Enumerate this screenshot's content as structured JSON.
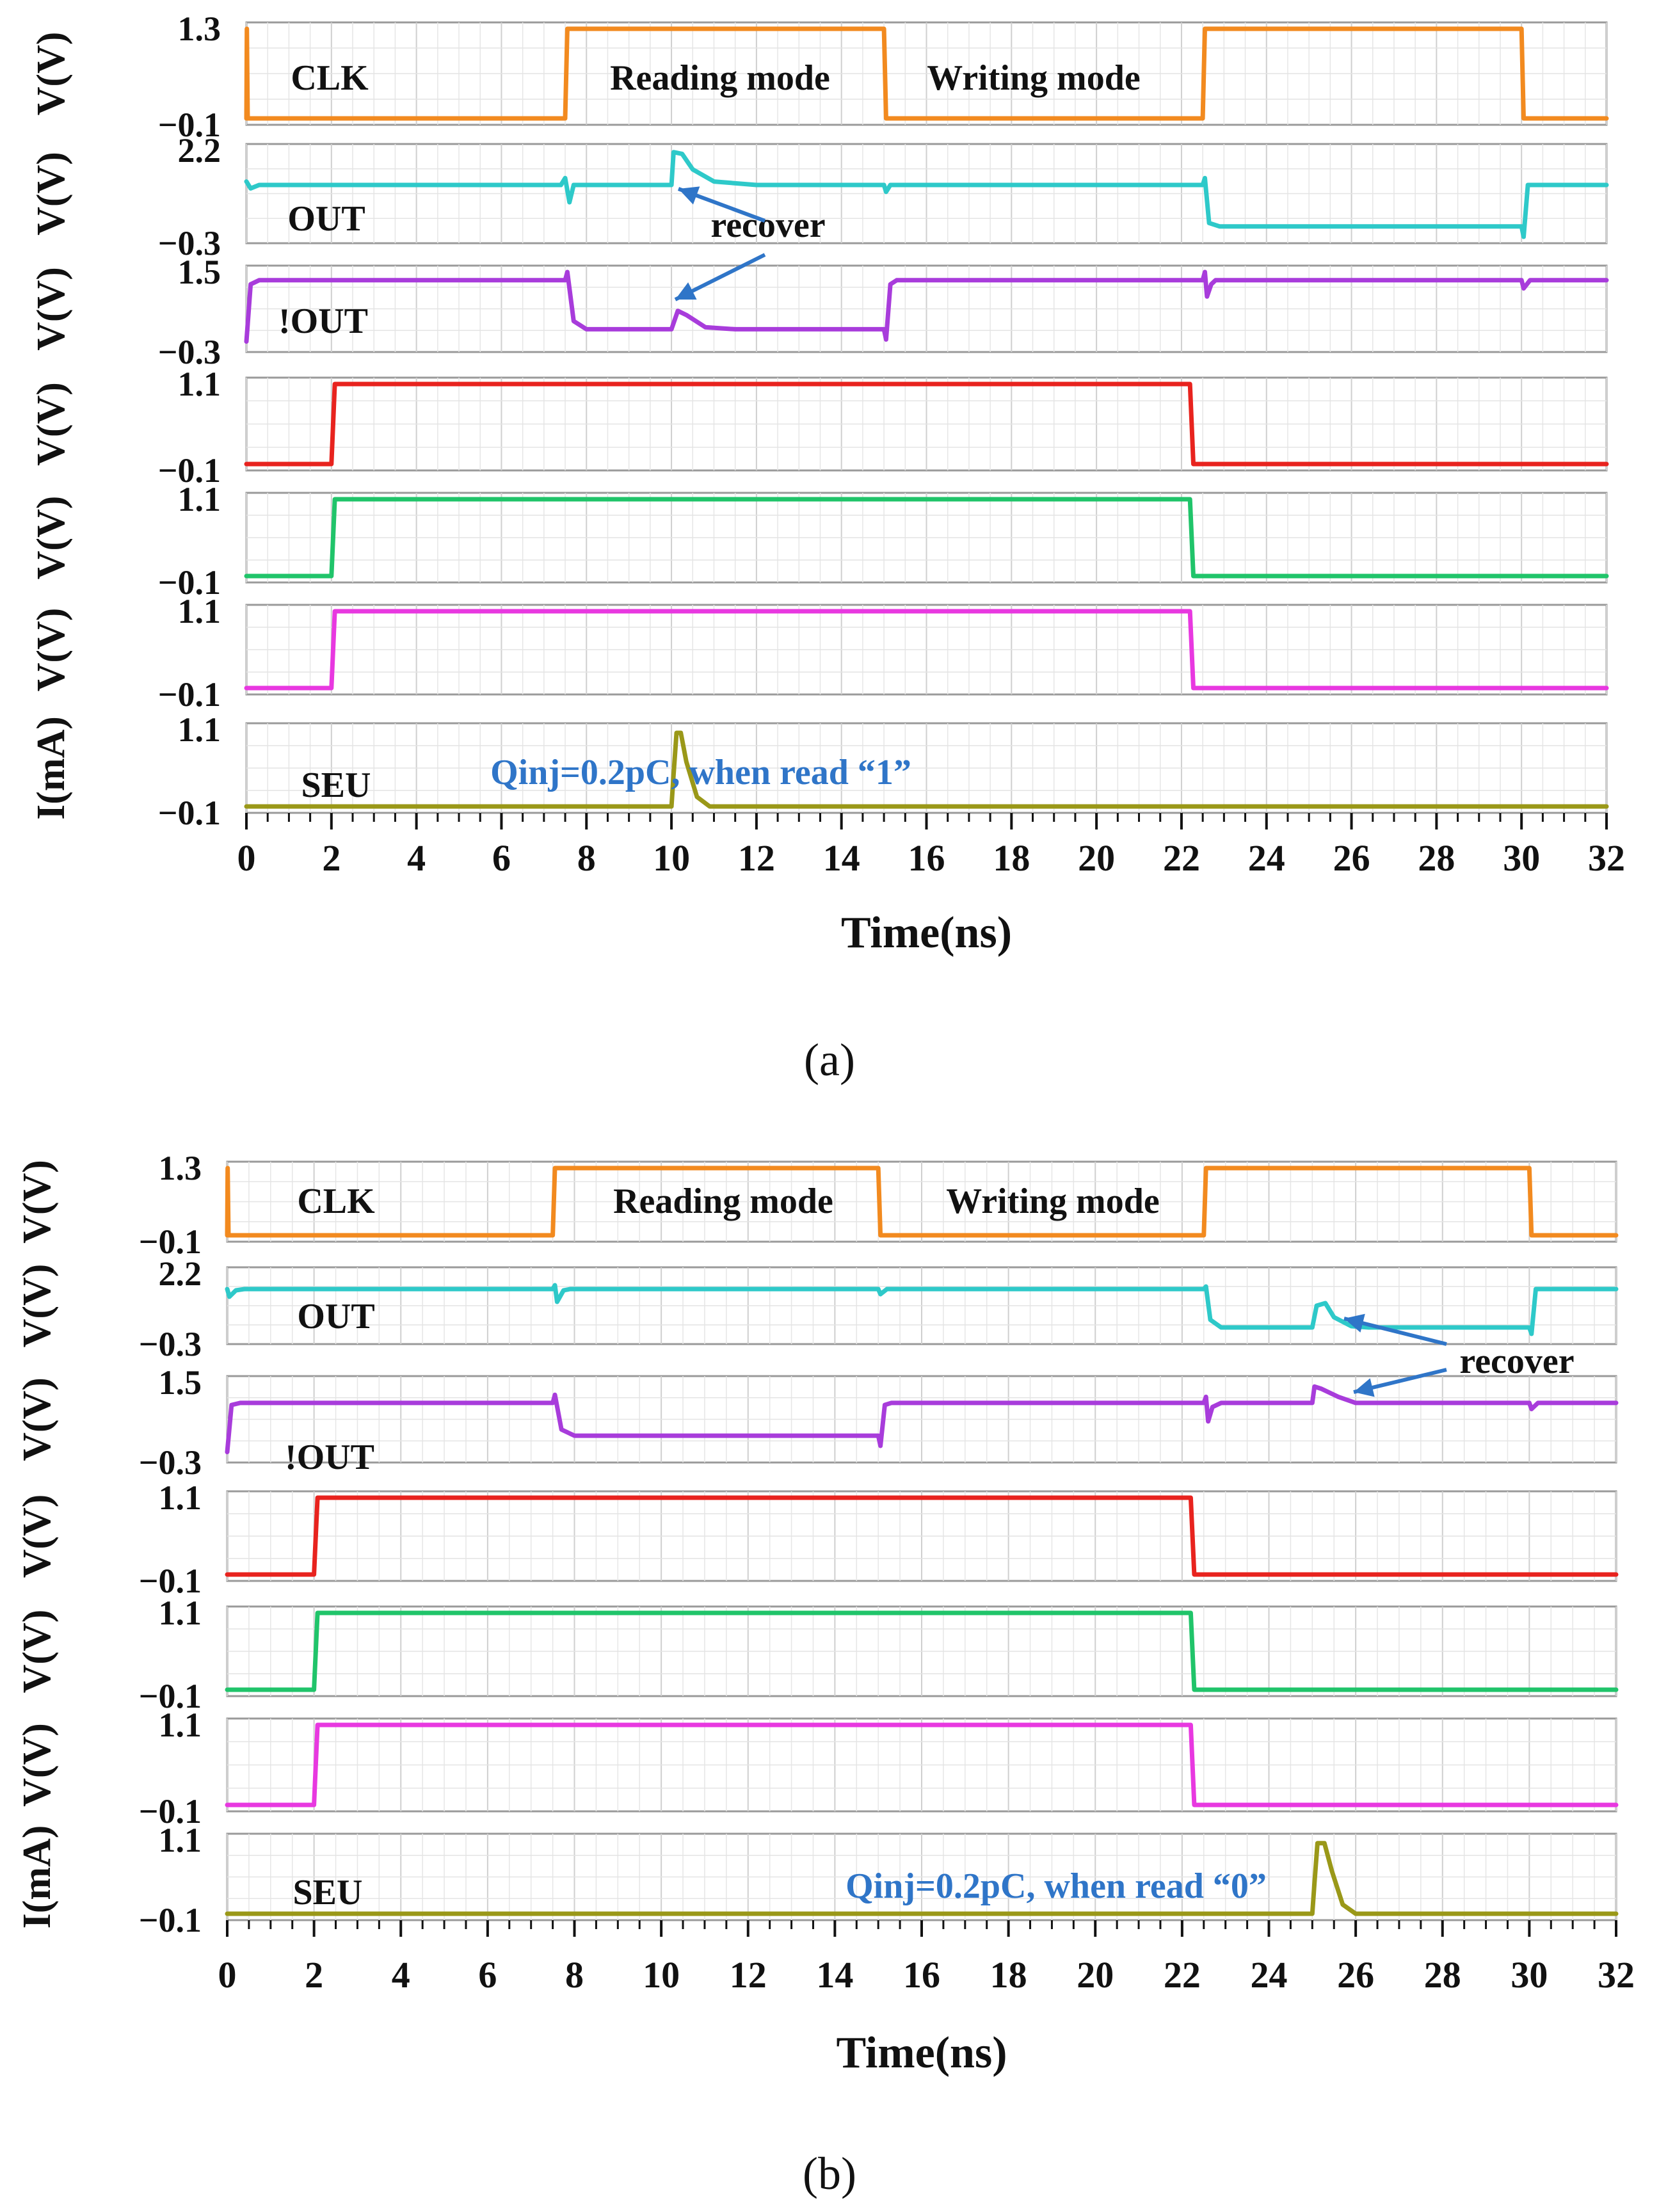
{
  "figure": {
    "panels": [
      {
        "caption": "(a)",
        "annotation": "Qinj=0.2pC, when read “1”",
        "recover_label": "recover",
        "mode_labels": {
          "reading": "Reading mode",
          "writing": "Writing mode"
        }
      },
      {
        "caption": "(b)",
        "annotation": "Qinj=0.2pC, when read “0”",
        "recover_label": "recover",
        "mode_labels": {
          "reading": "Reading mode",
          "writing": "Writing mode"
        }
      }
    ]
  },
  "chart_data": [
    {
      "type": "line",
      "id": "a",
      "title": "",
      "xlabel": "Time(ns)",
      "xlim": [
        0,
        32
      ],
      "x_ticks": [
        "0",
        "2",
        "4",
        "6",
        "8",
        "10",
        "12",
        "14",
        "16",
        "18",
        "20",
        "22",
        "24",
        "26",
        "28",
        "30",
        "32"
      ],
      "colors": {
        "clk": "#F28A1F",
        "out": "#2EC9C9",
        "nout": "#A83CDB",
        "red": "#E8231E",
        "green": "#20C46A",
        "mag": "#E838E0",
        "seu": "#9A9818",
        "anno": "#2F75C8"
      },
      "series": [
        {
          "name": "CLK",
          "label": "CLK",
          "ylabel": "V(V)",
          "ticks": [
            "1.3",
            "−0.1"
          ],
          "ylim": [
            -0.1,
            1.3
          ],
          "points": [
            [
              0,
              -0.1
            ],
            [
              0.01,
              1.3
            ],
            [
              0.03,
              -0.1
            ],
            [
              7.5,
              -0.1
            ],
            [
              7.55,
              1.3
            ],
            [
              15,
              1.3
            ],
            [
              15.05,
              -0.1
            ],
            [
              22.5,
              -0.1
            ],
            [
              22.55,
              1.3
            ],
            [
              30,
              1.3
            ],
            [
              30.05,
              -0.1
            ],
            [
              32,
              -0.1
            ]
          ]
        },
        {
          "name": "OUT",
          "label": "OUT",
          "ylabel": "V(V)",
          "ticks": [
            "2.2",
            "−0.3"
          ],
          "ylim": [
            -0.3,
            2.2
          ],
          "points": [
            [
              0,
              1.3
            ],
            [
              0.1,
              1.1
            ],
            [
              0.3,
              1.2
            ],
            [
              7.4,
              1.2
            ],
            [
              7.5,
              1.4
            ],
            [
              7.6,
              0.7
            ],
            [
              7.7,
              1.2
            ],
            [
              10.0,
              1.2
            ],
            [
              10.05,
              2.15
            ],
            [
              10.25,
              2.1
            ],
            [
              10.5,
              1.65
            ],
            [
              11.0,
              1.3
            ],
            [
              12.0,
              1.2
            ],
            [
              15.0,
              1.2
            ],
            [
              15.05,
              1.0
            ],
            [
              15.15,
              1.2
            ],
            [
              22.5,
              1.2
            ],
            [
              22.55,
              1.4
            ],
            [
              22.65,
              0.1
            ],
            [
              22.9,
              0.0
            ],
            [
              30.0,
              0.0
            ],
            [
              30.05,
              -0.3
            ],
            [
              30.15,
              1.2
            ],
            [
              32,
              1.2
            ]
          ]
        },
        {
          "name": "!OUT",
          "label": "!OUT",
          "ylabel": "V(V)",
          "ticks": [
            "1.5",
            "−0.3"
          ],
          "ylim": [
            -0.3,
            1.5
          ],
          "points": [
            [
              0,
              -0.2
            ],
            [
              0.1,
              1.2
            ],
            [
              0.3,
              1.3
            ],
            [
              7.5,
              1.3
            ],
            [
              7.55,
              1.5
            ],
            [
              7.7,
              0.3
            ],
            [
              8.0,
              0.1
            ],
            [
              10.0,
              0.1
            ],
            [
              10.15,
              0.55
            ],
            [
              10.35,
              0.45
            ],
            [
              10.8,
              0.15
            ],
            [
              11.5,
              0.1
            ],
            [
              15.0,
              0.1
            ],
            [
              15.05,
              -0.15
            ],
            [
              15.15,
              1.2
            ],
            [
              15.3,
              1.3
            ],
            [
              22.5,
              1.3
            ],
            [
              22.55,
              1.5
            ],
            [
              22.6,
              0.9
            ],
            [
              22.7,
              1.2
            ],
            [
              22.8,
              1.3
            ],
            [
              30.0,
              1.3
            ],
            [
              30.05,
              1.1
            ],
            [
              30.2,
              1.3
            ],
            [
              32,
              1.3
            ]
          ]
        },
        {
          "name": "red",
          "label": "",
          "ylabel": "V(V)",
          "ticks": [
            "1.1",
            "−0.1"
          ],
          "ylim": [
            -0.1,
            1.1
          ],
          "points": [
            [
              0,
              -0.1
            ],
            [
              2.0,
              -0.1
            ],
            [
              2.08,
              1.1
            ],
            [
              22.2,
              1.1
            ],
            [
              22.28,
              -0.1
            ],
            [
              32,
              -0.1
            ]
          ]
        },
        {
          "name": "green",
          "label": "",
          "ylabel": "V(V)",
          "ticks": [
            "1.1",
            "−0.1"
          ],
          "ylim": [
            -0.1,
            1.1
          ],
          "points": [
            [
              0,
              -0.1
            ],
            [
              2.0,
              -0.1
            ],
            [
              2.08,
              1.1
            ],
            [
              22.2,
              1.1
            ],
            [
              22.28,
              -0.1
            ],
            [
              32,
              -0.1
            ]
          ]
        },
        {
          "name": "magenta",
          "label": "",
          "ylabel": "V(V)",
          "ticks": [
            "1.1",
            "−0.1"
          ],
          "ylim": [
            -0.1,
            1.1
          ],
          "points": [
            [
              0,
              -0.1
            ],
            [
              2.0,
              -0.1
            ],
            [
              2.08,
              1.1
            ],
            [
              22.2,
              1.1
            ],
            [
              22.28,
              -0.1
            ],
            [
              32,
              -0.1
            ]
          ]
        },
        {
          "name": "SEU",
          "label": "SEU",
          "ylabel": "I(mA)",
          "ticks": [
            "1.1",
            "−0.1"
          ],
          "ylim": [
            -0.1,
            1.1
          ],
          "points": [
            [
              0,
              -0.1
            ],
            [
              10.0,
              -0.1
            ],
            [
              10.05,
              0.4
            ],
            [
              10.12,
              1.05
            ],
            [
              10.22,
              1.05
            ],
            [
              10.35,
              0.6
            ],
            [
              10.6,
              0.05
            ],
            [
              10.9,
              -0.1
            ],
            [
              32,
              -0.1
            ]
          ]
        }
      ]
    },
    {
      "type": "line",
      "id": "b",
      "title": "",
      "xlabel": "Time(ns)",
      "xlim": [
        0,
        32
      ],
      "x_ticks": [
        "0",
        "2",
        "4",
        "6",
        "8",
        "10",
        "12",
        "14",
        "16",
        "18",
        "20",
        "22",
        "24",
        "26",
        "28",
        "30",
        "32"
      ],
      "colors": {
        "clk": "#F28A1F",
        "out": "#2EC9C9",
        "nout": "#A83CDB",
        "red": "#E8231E",
        "green": "#20C46A",
        "mag": "#E838E0",
        "seu": "#9A9818",
        "anno": "#2F75C8"
      },
      "series": [
        {
          "name": "CLK",
          "label": "CLK",
          "ylabel": "V(V)",
          "ticks": [
            "1.3",
            "−0.1"
          ],
          "ylim": [
            -0.1,
            1.3
          ],
          "points": [
            [
              0,
              -0.1
            ],
            [
              0.01,
              1.3
            ],
            [
              0.03,
              -0.1
            ],
            [
              7.5,
              -0.1
            ],
            [
              7.55,
              1.3
            ],
            [
              15,
              1.3
            ],
            [
              15.05,
              -0.1
            ],
            [
              22.5,
              -0.1
            ],
            [
              22.55,
              1.3
            ],
            [
              30,
              1.3
            ],
            [
              30.05,
              -0.1
            ],
            [
              32,
              -0.1
            ]
          ]
        },
        {
          "name": "OUT",
          "label": "OUT",
          "ylabel": "V(V)",
          "ticks": [
            "2.2",
            "−0.3"
          ],
          "ylim": [
            -0.3,
            2.2
          ],
          "points": [
            [
              0,
              1.6
            ],
            [
              0.05,
              1.3
            ],
            [
              0.2,
              1.55
            ],
            [
              0.4,
              1.6
            ],
            [
              7.5,
              1.6
            ],
            [
              7.55,
              1.75
            ],
            [
              7.6,
              1.1
            ],
            [
              7.75,
              1.55
            ],
            [
              7.9,
              1.6
            ],
            [
              15.0,
              1.6
            ],
            [
              15.05,
              1.4
            ],
            [
              15.2,
              1.6
            ],
            [
              22.5,
              1.6
            ],
            [
              22.55,
              1.7
            ],
            [
              22.65,
              0.4
            ],
            [
              22.9,
              0.1
            ],
            [
              25.0,
              0.1
            ],
            [
              25.1,
              0.95
            ],
            [
              25.3,
              1.05
            ],
            [
              25.5,
              0.5
            ],
            [
              25.9,
              0.15
            ],
            [
              26.3,
              0.1
            ],
            [
              30.0,
              0.1
            ],
            [
              30.05,
              -0.15
            ],
            [
              30.15,
              1.6
            ],
            [
              32,
              1.6
            ]
          ]
        },
        {
          "name": "!OUT",
          "label": "!OUT",
          "ylabel": "V(V)",
          "ticks": [
            "1.5",
            "−0.3"
          ],
          "ylim": [
            -0.3,
            1.5
          ],
          "points": [
            [
              0,
              -0.2
            ],
            [
              0.1,
              0.95
            ],
            [
              0.3,
              1.0
            ],
            [
              7.5,
              1.0
            ],
            [
              7.55,
              1.2
            ],
            [
              7.7,
              0.35
            ],
            [
              8.0,
              0.2
            ],
            [
              15.0,
              0.2
            ],
            [
              15.05,
              -0.05
            ],
            [
              15.15,
              0.95
            ],
            [
              15.3,
              1.0
            ],
            [
              22.5,
              1.0
            ],
            [
              22.55,
              1.15
            ],
            [
              22.6,
              0.55
            ],
            [
              22.7,
              0.9
            ],
            [
              22.9,
              1.0
            ],
            [
              25.0,
              1.0
            ],
            [
              25.05,
              1.4
            ],
            [
              25.2,
              1.35
            ],
            [
              25.6,
              1.15
            ],
            [
              26.0,
              1.0
            ],
            [
              30.0,
              1.0
            ],
            [
              30.05,
              0.85
            ],
            [
              30.2,
              1.0
            ],
            [
              32,
              1.0
            ]
          ]
        },
        {
          "name": "red",
          "label": "",
          "ylabel": "V(V)",
          "ticks": [
            "1.1",
            "−0.1"
          ],
          "ylim": [
            -0.1,
            1.1
          ],
          "points": [
            [
              0,
              -0.1
            ],
            [
              2.0,
              -0.1
            ],
            [
              2.08,
              1.1
            ],
            [
              22.2,
              1.1
            ],
            [
              22.28,
              -0.1
            ],
            [
              32,
              -0.1
            ]
          ]
        },
        {
          "name": "green",
          "label": "",
          "ylabel": "V(V)",
          "ticks": [
            "1.1",
            "−0.1"
          ],
          "ylim": [
            -0.1,
            1.1
          ],
          "points": [
            [
              0,
              -0.1
            ],
            [
              2.0,
              -0.1
            ],
            [
              2.08,
              1.1
            ],
            [
              22.2,
              1.1
            ],
            [
              22.28,
              -0.1
            ],
            [
              32,
              -0.1
            ]
          ]
        },
        {
          "name": "magenta",
          "label": "",
          "ylabel": "V(V)",
          "ticks": [
            "1.1",
            "−0.1"
          ],
          "ylim": [
            -0.1,
            1.1
          ],
          "points": [
            [
              0,
              -0.1
            ],
            [
              2.0,
              -0.1
            ],
            [
              2.08,
              1.1
            ],
            [
              22.2,
              1.1
            ],
            [
              22.28,
              -0.1
            ],
            [
              32,
              -0.1
            ]
          ]
        },
        {
          "name": "SEU",
          "label": "SEU",
          "ylabel": "I(mA)",
          "ticks": [
            "1.1",
            "−0.1"
          ],
          "ylim": [
            -0.1,
            1.1
          ],
          "points": [
            [
              0,
              -0.1
            ],
            [
              25.0,
              -0.1
            ],
            [
              25.05,
              0.4
            ],
            [
              25.12,
              1.05
            ],
            [
              25.28,
              1.05
            ],
            [
              25.45,
              0.6
            ],
            [
              25.7,
              0.05
            ],
            [
              26.0,
              -0.1
            ],
            [
              32,
              -0.1
            ]
          ]
        }
      ]
    }
  ]
}
